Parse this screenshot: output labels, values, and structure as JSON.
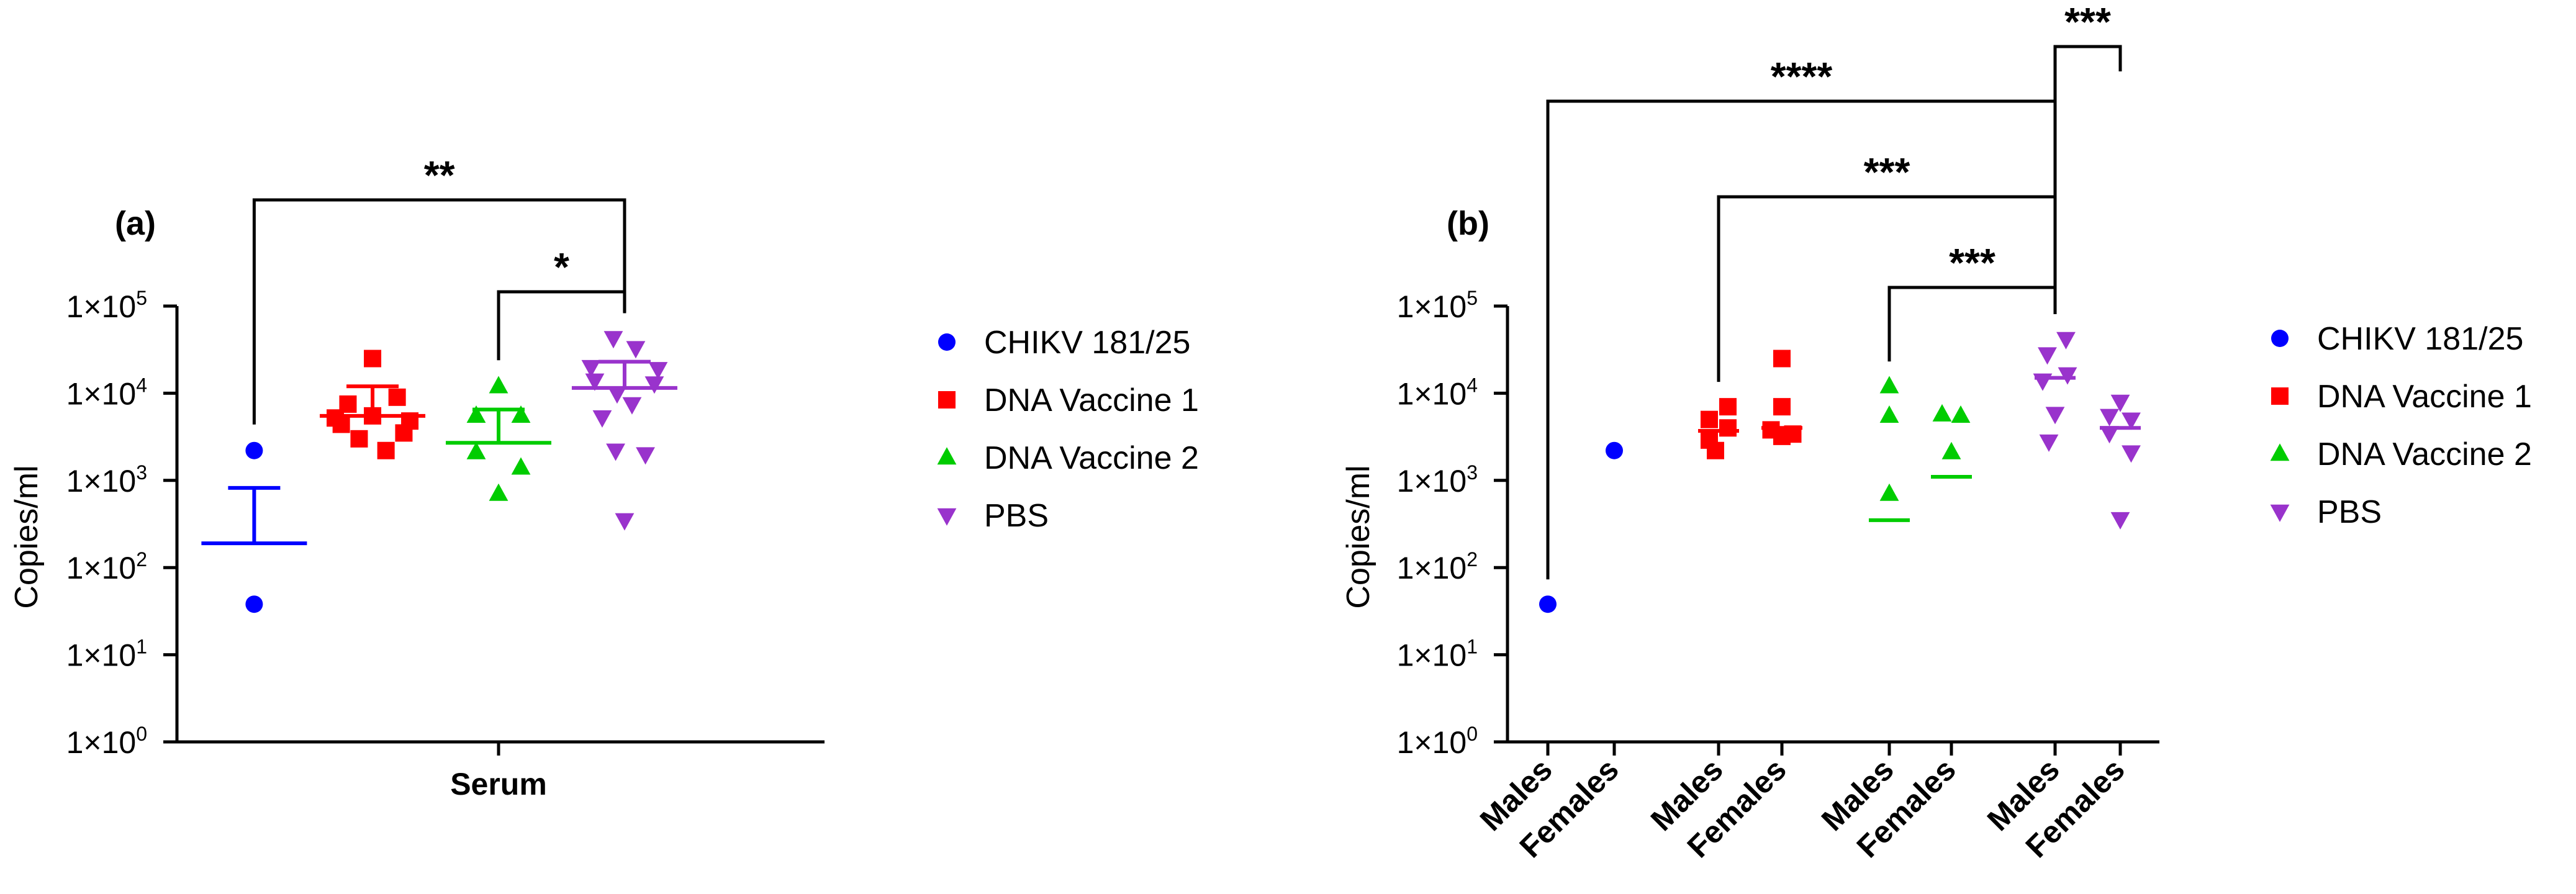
{
  "chart_data": [
    {
      "type": "scatter",
      "panel_label": "(a)",
      "ylabel": "Copies/ml",
      "y_scale": "log10",
      "ylim": [
        1,
        100000
      ],
      "y_ticks": [
        {
          "exp": "0",
          "value": 1
        },
        {
          "exp": "1",
          "value": 10
        },
        {
          "exp": "2",
          "value": 100
        },
        {
          "exp": "3",
          "value": 1000
        },
        {
          "exp": "4",
          "value": 10000
        },
        {
          "exp": "5",
          "value": 100000
        }
      ],
      "tick_prefix": "1×10",
      "categories": [
        "Serum"
      ],
      "series": [
        {
          "name": "CHIKV 181/25",
          "color": "#0000ff",
          "marker": "circle",
          "x_index": 0,
          "offset": -3.2,
          "values": [
            2200,
            38
          ],
          "jitter": [
            0,
            0
          ],
          "mean": 190,
          "sem_upper": 820
        },
        {
          "name": "DNA Vaccine 1",
          "color": "#ff0000",
          "marker": "square",
          "x_index": 0,
          "offset": -1.65,
          "values": [
            25000,
            7500,
            9000,
            5200,
            4800,
            5500,
            4400,
            3500,
            3000,
            2200
          ],
          "jitter": [
            0,
            -0.33,
            0.33,
            -0.5,
            0.5,
            0,
            -0.42,
            0.42,
            -0.18,
            0.18
          ],
          "mean": 5500,
          "sem_upper": 12000
        },
        {
          "name": "DNA Vaccine 2",
          "color": "#00cc00",
          "marker": "triangle",
          "x_index": 0,
          "offset": 0,
          "values": [
            12000,
            5500,
            5500,
            2100,
            1400,
            700
          ],
          "jitter": [
            0,
            -0.3,
            0.3,
            -0.3,
            0.3,
            0
          ],
          "mean": 2700,
          "sem_upper": 6500
        },
        {
          "name": "PBS",
          "color": "#9933cc",
          "marker": "triangle-down",
          "x_index": 0,
          "offset": 1.65,
          "values": [
            43000,
            33000,
            20000,
            19000,
            14000,
            13000,
            10000,
            7500,
            5300,
            2200,
            2000,
            350
          ],
          "jitter": [
            -0.15,
            0.15,
            -0.45,
            0.45,
            -0.4,
            0.4,
            -0.1,
            0.1,
            -0.3,
            -0.12,
            0.28,
            0
          ],
          "mean": 11500,
          "sem_upper": 23000
        }
      ],
      "significance": [
        {
          "label": "**",
          "from_series": 0,
          "to_series": 3
        },
        {
          "label": "*",
          "from_series": 2,
          "to_series": 3
        }
      ]
    },
    {
      "type": "scatter",
      "panel_label": "(b)",
      "ylabel": "Copies/ml",
      "y_scale": "log10",
      "ylim": [
        1,
        100000
      ],
      "y_ticks": [
        {
          "exp": "0",
          "value": 1
        },
        {
          "exp": "1",
          "value": 10
        },
        {
          "exp": "2",
          "value": 100
        },
        {
          "exp": "3",
          "value": 1000
        },
        {
          "exp": "4",
          "value": 10000
        },
        {
          "exp": "5",
          "value": 100000
        }
      ],
      "tick_prefix": "1×10",
      "categories": [
        "Males",
        "Females",
        "Males",
        "Females",
        "Males",
        "Females",
        "Males",
        "Females"
      ],
      "groups": [
        {
          "series": "CHIKV 181/25",
          "sex": "Males",
          "values": [
            38
          ],
          "jitter": [
            0
          ],
          "mean": null
        },
        {
          "series": "CHIKV 181/25",
          "sex": "Females",
          "values": [
            2200
          ],
          "jitter": [
            0
          ],
          "mean": null
        },
        {
          "series": "DNA Vaccine 1",
          "sex": "Males",
          "values": [
            7000,
            5000,
            4000,
            2900,
            2200
          ],
          "jitter": [
            0.3,
            -0.3,
            0.3,
            -0.3,
            -0.1
          ],
          "mean": 3700
        },
        {
          "series": "DNA Vaccine 1",
          "sex": "Females",
          "values": [
            25000,
            7000,
            3800,
            3400,
            3200
          ],
          "jitter": [
            0,
            0,
            -0.35,
            0.35,
            0
          ],
          "mean": 4000
        },
        {
          "series": "DNA Vaccine 2",
          "sex": "Males",
          "values": [
            12000,
            5500,
            700
          ],
          "jitter": [
            0,
            0,
            0
          ],
          "mean": 350
        },
        {
          "series": "DNA Vaccine 2",
          "sex": "Females",
          "values": [
            5700,
            5500,
            2100
          ],
          "jitter": [
            -0.3,
            0.3,
            0
          ],
          "mean": 1100
        },
        {
          "series": "PBS",
          "sex": "Males",
          "values": [
            42000,
            28000,
            16500,
            14000,
            5800,
            2800
          ],
          "jitter": [
            0.35,
            -0.25,
            0.4,
            -0.4,
            0,
            -0.2
          ],
          "mean": 15000
        },
        {
          "series": "PBS",
          "sex": "Females",
          "values": [
            8000,
            5500,
            5000,
            3500,
            2100,
            360
          ],
          "jitter": [
            0,
            -0.35,
            0.35,
            -0.35,
            0.35,
            0
          ],
          "mean": 4000
        }
      ],
      "significance": [
        {
          "label": "****",
          "from_group": 0,
          "to_group": 6
        },
        {
          "label": "***",
          "from_group": 2,
          "to_group": 6
        },
        {
          "label": "***",
          "from_group": 4,
          "to_group": 6
        },
        {
          "label": "***",
          "from_group": 6,
          "to_group": 7
        }
      ]
    }
  ],
  "legend": [
    {
      "name": "CHIKV 181/25",
      "color": "#0000ff",
      "marker": "circle"
    },
    {
      "name": "DNA Vaccine 1",
      "color": "#ff0000",
      "marker": "square"
    },
    {
      "name": "DNA Vaccine 2",
      "color": "#00cc00",
      "marker": "triangle"
    },
    {
      "name": "PBS",
      "color": "#9933cc",
      "marker": "triangle-down"
    }
  ]
}
